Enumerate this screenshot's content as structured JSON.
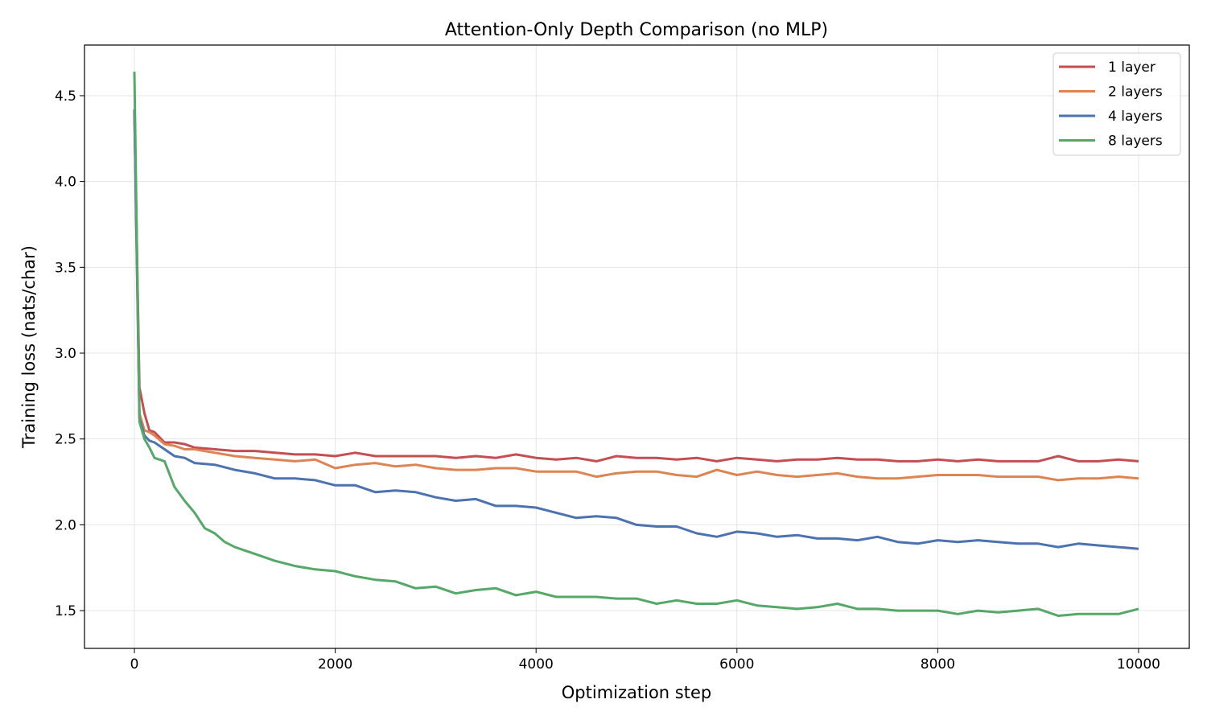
{
  "chart_data": {
    "type": "line",
    "title": "Attention-Only Depth Comparison (no MLP)",
    "xlabel": "Optimization step",
    "ylabel": "Training loss (nats/char)",
    "xlim": [
      -497,
      10505
    ],
    "ylim": [
      1.28,
      4.795
    ],
    "xticks": [
      0,
      2000,
      4000,
      6000,
      8000,
      10000
    ],
    "xtick_labels": [
      "0",
      "2000",
      "4000",
      "6000",
      "8000",
      "10000"
    ],
    "yticks": [
      1.5,
      2.0,
      2.5,
      3.0,
      3.5,
      4.0,
      4.5
    ],
    "ytick_labels": [
      "1.5",
      "2.0",
      "2.5",
      "3.0",
      "3.5",
      "4.0",
      "4.5"
    ],
    "grid": true,
    "legend_position": "top-right",
    "series": [
      {
        "name": "1 layer",
        "color": "#c44e52",
        "points": [
          [
            0,
            4.42
          ],
          [
            50,
            2.8
          ],
          [
            100,
            2.65
          ],
          [
            150,
            2.55
          ],
          [
            200,
            2.54
          ],
          [
            300,
            2.48
          ],
          [
            400,
            2.48
          ],
          [
            500,
            2.47
          ],
          [
            600,
            2.45
          ],
          [
            800,
            2.44
          ],
          [
            1000,
            2.43
          ],
          [
            1200,
            2.43
          ],
          [
            1400,
            2.42
          ],
          [
            1600,
            2.41
          ],
          [
            1800,
            2.41
          ],
          [
            2000,
            2.4
          ],
          [
            2200,
            2.42
          ],
          [
            2400,
            2.4
          ],
          [
            2600,
            2.4
          ],
          [
            2800,
            2.4
          ],
          [
            3000,
            2.4
          ],
          [
            3200,
            2.39
          ],
          [
            3400,
            2.4
          ],
          [
            3600,
            2.39
          ],
          [
            3800,
            2.41
          ],
          [
            4000,
            2.39
          ],
          [
            4200,
            2.38
          ],
          [
            4400,
            2.39
          ],
          [
            4600,
            2.37
          ],
          [
            4800,
            2.4
          ],
          [
            5000,
            2.39
          ],
          [
            5200,
            2.39
          ],
          [
            5400,
            2.38
          ],
          [
            5600,
            2.39
          ],
          [
            5800,
            2.37
          ],
          [
            6000,
            2.39
          ],
          [
            6200,
            2.38
          ],
          [
            6400,
            2.37
          ],
          [
            6600,
            2.38
          ],
          [
            6800,
            2.38
          ],
          [
            7000,
            2.39
          ],
          [
            7200,
            2.38
          ],
          [
            7400,
            2.38
          ],
          [
            7600,
            2.37
          ],
          [
            7800,
            2.37
          ],
          [
            8000,
            2.38
          ],
          [
            8200,
            2.37
          ],
          [
            8400,
            2.38
          ],
          [
            8600,
            2.37
          ],
          [
            8800,
            2.37
          ],
          [
            9000,
            2.37
          ],
          [
            9200,
            2.4
          ],
          [
            9400,
            2.37
          ],
          [
            9600,
            2.37
          ],
          [
            9800,
            2.38
          ],
          [
            10000,
            2.37
          ]
        ]
      },
      {
        "name": "2 layers",
        "color": "#dd8452",
        "points": [
          [
            0,
            4.4
          ],
          [
            50,
            2.65
          ],
          [
            100,
            2.55
          ],
          [
            150,
            2.54
          ],
          [
            200,
            2.52
          ],
          [
            300,
            2.47
          ],
          [
            400,
            2.46
          ],
          [
            500,
            2.44
          ],
          [
            600,
            2.44
          ],
          [
            800,
            2.42
          ],
          [
            1000,
            2.4
          ],
          [
            1200,
            2.39
          ],
          [
            1400,
            2.38
          ],
          [
            1600,
            2.37
          ],
          [
            1800,
            2.38
          ],
          [
            2000,
            2.33
          ],
          [
            2200,
            2.35
          ],
          [
            2400,
            2.36
          ],
          [
            2600,
            2.34
          ],
          [
            2800,
            2.35
          ],
          [
            3000,
            2.33
          ],
          [
            3200,
            2.32
          ],
          [
            3400,
            2.32
          ],
          [
            3600,
            2.33
          ],
          [
            3800,
            2.33
          ],
          [
            4000,
            2.31
          ],
          [
            4200,
            2.31
          ],
          [
            4400,
            2.31
          ],
          [
            4600,
            2.28
          ],
          [
            4800,
            2.3
          ],
          [
            5000,
            2.31
          ],
          [
            5200,
            2.31
          ],
          [
            5400,
            2.29
          ],
          [
            5600,
            2.28
          ],
          [
            5800,
            2.32
          ],
          [
            6000,
            2.29
          ],
          [
            6200,
            2.31
          ],
          [
            6400,
            2.29
          ],
          [
            6600,
            2.28
          ],
          [
            6800,
            2.29
          ],
          [
            7000,
            2.3
          ],
          [
            7200,
            2.28
          ],
          [
            7400,
            2.27
          ],
          [
            7600,
            2.27
          ],
          [
            7800,
            2.28
          ],
          [
            8000,
            2.29
          ],
          [
            8200,
            2.29
          ],
          [
            8400,
            2.29
          ],
          [
            8600,
            2.28
          ],
          [
            8800,
            2.28
          ],
          [
            9000,
            2.28
          ],
          [
            9200,
            2.26
          ],
          [
            9400,
            2.27
          ],
          [
            9600,
            2.27
          ],
          [
            9800,
            2.28
          ],
          [
            10000,
            2.27
          ]
        ]
      },
      {
        "name": "4 layers",
        "color": "#4c72b0",
        "points": [
          [
            0,
            4.42
          ],
          [
            50,
            2.62
          ],
          [
            100,
            2.52
          ],
          [
            150,
            2.49
          ],
          [
            200,
            2.48
          ],
          [
            300,
            2.44
          ],
          [
            400,
            2.4
          ],
          [
            500,
            2.39
          ],
          [
            600,
            2.36
          ],
          [
            800,
            2.35
          ],
          [
            1000,
            2.32
          ],
          [
            1200,
            2.3
          ],
          [
            1400,
            2.27
          ],
          [
            1600,
            2.27
          ],
          [
            1800,
            2.26
          ],
          [
            2000,
            2.23
          ],
          [
            2200,
            2.23
          ],
          [
            2400,
            2.19
          ],
          [
            2600,
            2.2
          ],
          [
            2800,
            2.19
          ],
          [
            3000,
            2.16
          ],
          [
            3200,
            2.14
          ],
          [
            3400,
            2.15
          ],
          [
            3600,
            2.11
          ],
          [
            3800,
            2.11
          ],
          [
            4000,
            2.1
          ],
          [
            4200,
            2.07
          ],
          [
            4400,
            2.04
          ],
          [
            4600,
            2.05
          ],
          [
            4800,
            2.04
          ],
          [
            5000,
            2.0
          ],
          [
            5200,
            1.99
          ],
          [
            5400,
            1.99
          ],
          [
            5600,
            1.95
          ],
          [
            5800,
            1.93
          ],
          [
            6000,
            1.96
          ],
          [
            6200,
            1.95
          ],
          [
            6400,
            1.93
          ],
          [
            6600,
            1.94
          ],
          [
            6800,
            1.92
          ],
          [
            7000,
            1.92
          ],
          [
            7200,
            1.91
          ],
          [
            7400,
            1.93
          ],
          [
            7600,
            1.9
          ],
          [
            7800,
            1.89
          ],
          [
            8000,
            1.91
          ],
          [
            8200,
            1.9
          ],
          [
            8400,
            1.91
          ],
          [
            8600,
            1.9
          ],
          [
            8800,
            1.89
          ],
          [
            9000,
            1.89
          ],
          [
            9200,
            1.87
          ],
          [
            9400,
            1.89
          ],
          [
            9600,
            1.88
          ],
          [
            9800,
            1.87
          ],
          [
            10000,
            1.86
          ]
        ]
      },
      {
        "name": "8 layers",
        "color": "#55a868",
        "points": [
          [
            0,
            4.64
          ],
          [
            50,
            2.6
          ],
          [
            100,
            2.5
          ],
          [
            150,
            2.45
          ],
          [
            200,
            2.39
          ],
          [
            300,
            2.37
          ],
          [
            400,
            2.22
          ],
          [
            500,
            2.14
          ],
          [
            600,
            2.07
          ],
          [
            700,
            1.98
          ],
          [
            800,
            1.95
          ],
          [
            900,
            1.9
          ],
          [
            1000,
            1.87
          ],
          [
            1200,
            1.83
          ],
          [
            1400,
            1.79
          ],
          [
            1600,
            1.76
          ],
          [
            1800,
            1.74
          ],
          [
            2000,
            1.73
          ],
          [
            2200,
            1.7
          ],
          [
            2400,
            1.68
          ],
          [
            2600,
            1.67
          ],
          [
            2800,
            1.63
          ],
          [
            3000,
            1.64
          ],
          [
            3200,
            1.6
          ],
          [
            3400,
            1.62
          ],
          [
            3600,
            1.63
          ],
          [
            3800,
            1.59
          ],
          [
            4000,
            1.61
          ],
          [
            4200,
            1.58
          ],
          [
            4400,
            1.58
          ],
          [
            4600,
            1.58
          ],
          [
            4800,
            1.57
          ],
          [
            5000,
            1.57
          ],
          [
            5200,
            1.54
          ],
          [
            5400,
            1.56
          ],
          [
            5600,
            1.54
          ],
          [
            5800,
            1.54
          ],
          [
            6000,
            1.56
          ],
          [
            6200,
            1.53
          ],
          [
            6400,
            1.52
          ],
          [
            6600,
            1.51
          ],
          [
            6800,
            1.52
          ],
          [
            7000,
            1.54
          ],
          [
            7200,
            1.51
          ],
          [
            7400,
            1.51
          ],
          [
            7600,
            1.5
          ],
          [
            7800,
            1.5
          ],
          [
            8000,
            1.5
          ],
          [
            8200,
            1.48
          ],
          [
            8400,
            1.5
          ],
          [
            8600,
            1.49
          ],
          [
            8800,
            1.5
          ],
          [
            9000,
            1.51
          ],
          [
            9200,
            1.47
          ],
          [
            9400,
            1.48
          ],
          [
            9600,
            1.48
          ],
          [
            9800,
            1.48
          ],
          [
            10000,
            1.51
          ]
        ]
      }
    ]
  }
}
